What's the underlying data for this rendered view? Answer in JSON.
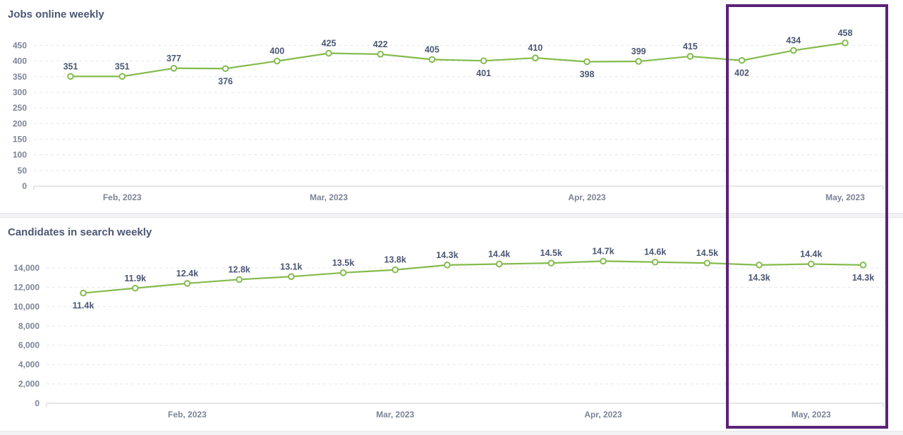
{
  "colors": {
    "line": "#84bb4c",
    "highlight": "#5a2379",
    "text": "#4c5773",
    "muted": "#7b8396"
  },
  "chart_data": [
    {
      "type": "line",
      "title": "Jobs online weekly",
      "x_tick_labels": [
        "Feb, 2023",
        "Mar, 2023",
        "Apr, 2023",
        "May, 2023"
      ],
      "x_tick_positions": [
        1,
        5,
        10,
        15
      ],
      "ylim": [
        0,
        460
      ],
      "yticks": [
        0,
        50,
        100,
        150,
        200,
        250,
        300,
        350,
        400,
        450
      ],
      "grid": true,
      "series": [
        {
          "values": [
            351,
            351,
            377,
            376,
            400,
            425,
            422,
            405,
            401,
            410,
            398,
            399,
            415,
            402,
            434,
            458
          ],
          "labels": [
            "351",
            "351",
            "377",
            "376",
            "400",
            "425",
            "422",
            "405",
            "401",
            "410",
            "398",
            "399",
            "415",
            "402",
            "434",
            "458"
          ]
        }
      ]
    },
    {
      "type": "line",
      "title": "Candidates in search weekly",
      "x_tick_labels": [
        "Feb, 2023",
        "Mar, 2023",
        "Apr, 2023",
        "May, 2023"
      ],
      "x_tick_positions": [
        2,
        6,
        10,
        14
      ],
      "ylim": [
        0,
        14800
      ],
      "yticks": [
        0,
        2000,
        4000,
        6000,
        8000,
        10000,
        12000,
        14000
      ],
      "ytick_labels": [
        "0",
        "2,000",
        "4,000",
        "6,000",
        "8,000",
        "10,000",
        "12,000",
        "14,000"
      ],
      "grid": true,
      "series": [
        {
          "values": [
            11400,
            11900,
            12400,
            12800,
            13100,
            13500,
            13800,
            14300,
            14400,
            14500,
            14700,
            14600,
            14500,
            14300,
            14400,
            14300
          ],
          "labels": [
            "11.4k",
            "11.9k",
            "12.4k",
            "12.8k",
            "13.1k",
            "13.5k",
            "13.8k",
            "14.3k",
            "14.4k",
            "14.5k",
            "14.7k",
            "14.6k",
            "14.5k",
            "14.3k",
            "14.4k",
            "14.3k"
          ]
        }
      ]
    }
  ]
}
